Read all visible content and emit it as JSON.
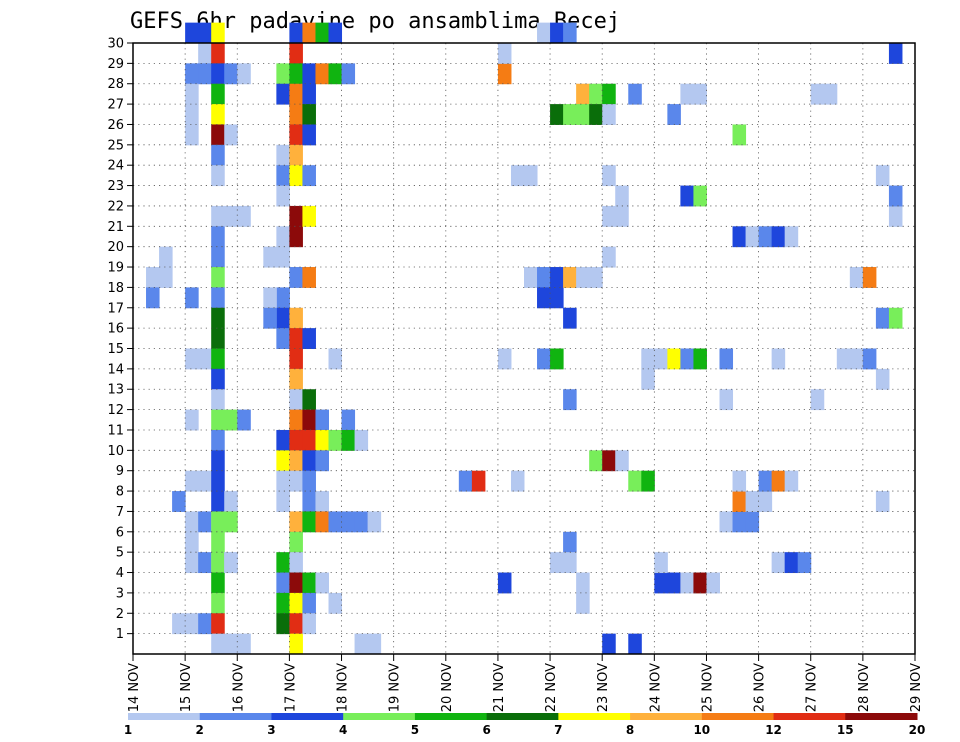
{
  "chart_data": {
    "type": "heatmap",
    "title": "GEFS 6hr padavine po ansamblima Becej",
    "x_labels": [
      "14 NOV",
      "15 NOV",
      "16 NOV",
      "17 NOV",
      "18 NOV",
      "19 NOV",
      "20 NOV",
      "21 NOV",
      "22 NOV",
      "23 NOV",
      "24 NOV",
      "25 NOV",
      "26 NOV",
      "27 NOV",
      "28 NOV",
      "29 NOV"
    ],
    "x_unit_steps": "6h",
    "y_ticks": [
      1,
      2,
      3,
      4,
      5,
      6,
      7,
      8,
      9,
      10,
      11,
      12,
      13,
      14,
      15,
      16,
      17,
      18,
      19,
      20,
      21,
      22,
      23,
      24,
      25,
      26,
      27,
      28,
      29,
      30
    ],
    "ylim": [
      0,
      30
    ],
    "grid": true,
    "colorbar": {
      "labels": [
        "1",
        "2",
        "3",
        "4",
        "5",
        "6",
        "7",
        "8",
        "10",
        "12",
        "15",
        "20"
      ],
      "colors": [
        "#b4c8f0",
        "#5a87eb",
        "#1e46dc",
        "#78ee5a",
        "#10b410",
        "#0a6e0a",
        "#ffff00",
        "#ffb13c",
        "#f57c14",
        "#e12d14",
        "#8c0a0a"
      ]
    },
    "cells": [
      [
        4,
        30,
        3
      ],
      [
        5,
        30,
        3
      ],
      [
        5,
        29,
        1
      ],
      [
        4,
        28,
        2
      ],
      [
        5,
        28,
        2
      ],
      [
        4,
        27,
        1
      ],
      [
        4,
        26,
        1
      ],
      [
        4,
        25,
        1
      ],
      [
        4,
        17,
        2
      ],
      [
        4,
        14,
        1
      ],
      [
        5,
        14,
        1
      ],
      [
        6,
        13,
        1
      ],
      [
        4,
        11,
        1
      ],
      [
        4,
        8,
        1
      ],
      [
        5,
        8,
        1
      ],
      [
        3,
        7,
        2
      ],
      [
        4,
        6,
        1
      ],
      [
        5,
        6,
        2
      ],
      [
        6,
        6,
        1
      ],
      [
        4,
        5,
        1
      ],
      [
        4,
        4,
        1
      ],
      [
        5,
        4,
        2
      ],
      [
        6,
        4,
        1
      ],
      [
        3,
        1,
        1
      ],
      [
        4,
        1,
        1
      ],
      [
        5,
        1,
        2
      ],
      [
        7,
        0,
        1
      ],
      [
        8,
        0,
        1
      ],
      [
        1,
        18,
        1
      ],
      [
        1,
        17,
        2
      ],
      [
        2,
        19,
        1
      ],
      [
        2,
        18,
        1
      ],
      [
        6,
        30,
        7
      ],
      [
        6,
        29,
        10
      ],
      [
        6,
        28,
        3
      ],
      [
        6,
        27,
        5
      ],
      [
        6,
        26,
        7
      ],
      [
        6,
        25,
        11
      ],
      [
        6,
        24,
        2
      ],
      [
        6,
        23,
        1
      ],
      [
        6,
        21,
        1
      ],
      [
        6,
        20,
        2
      ],
      [
        6,
        19,
        2
      ],
      [
        6,
        18,
        4
      ],
      [
        6,
        17,
        2
      ],
      [
        6,
        16,
        6
      ],
      [
        6,
        15,
        6
      ],
      [
        6,
        14,
        5
      ],
      [
        6,
        13,
        3
      ],
      [
        6,
        12,
        1
      ],
      [
        6,
        11,
        4
      ],
      [
        6,
        10,
        2
      ],
      [
        6,
        9,
        3
      ],
      [
        6,
        8,
        3
      ],
      [
        6,
        7,
        3
      ],
      [
        6,
        6,
        4
      ],
      [
        6,
        5,
        4
      ],
      [
        6,
        4,
        4
      ],
      [
        6,
        3,
        5
      ],
      [
        6,
        2,
        4
      ],
      [
        6,
        1,
        10
      ],
      [
        6,
        0,
        1
      ],
      [
        7,
        28,
        2
      ],
      [
        8,
        28,
        1
      ],
      [
        7,
        25,
        1
      ],
      [
        7,
        21,
        1
      ],
      [
        8,
        21,
        1
      ],
      [
        7,
        11,
        4
      ],
      [
        8,
        11,
        2
      ],
      [
        7,
        7,
        1
      ],
      [
        7,
        6,
        4
      ],
      [
        7,
        4,
        1
      ],
      [
        7,
        4,
        1
      ],
      [
        11,
        28,
        4
      ],
      [
        11,
        27,
        3
      ],
      [
        11,
        24,
        1
      ],
      [
        11,
        23,
        2
      ],
      [
        11,
        22,
        1
      ],
      [
        11,
        20,
        1
      ],
      [
        11,
        19,
        1
      ],
      [
        11,
        17,
        2
      ],
      [
        11,
        16,
        3
      ],
      [
        11,
        15,
        2
      ],
      [
        11,
        10,
        3
      ],
      [
        11,
        9,
        7
      ],
      [
        11,
        8,
        1
      ],
      [
        11,
        7,
        1
      ],
      [
        11,
        4,
        5
      ],
      [
        11,
        3,
        2
      ],
      [
        11,
        2,
        5
      ],
      [
        11,
        1,
        6
      ],
      [
        10,
        19,
        1
      ],
      [
        10,
        17,
        1
      ],
      [
        10,
        16,
        2
      ],
      [
        12,
        30,
        3
      ],
      [
        12,
        29,
        10
      ],
      [
        12,
        28,
        5
      ],
      [
        12,
        27,
        9
      ],
      [
        12,
        26,
        9
      ],
      [
        12,
        25,
        10
      ],
      [
        12,
        24,
        8
      ],
      [
        12,
        23,
        7
      ],
      [
        12,
        21,
        11
      ],
      [
        12,
        20,
        11
      ],
      [
        12,
        18,
        2
      ],
      [
        12,
        16,
        8
      ],
      [
        12,
        15,
        10
      ],
      [
        12,
        14,
        10
      ],
      [
        12,
        13,
        8
      ],
      [
        12,
        12,
        1
      ],
      [
        12,
        11,
        9
      ],
      [
        12,
        10,
        10
      ],
      [
        12,
        9,
        8
      ],
      [
        12,
        8,
        1
      ],
      [
        12,
        6,
        8
      ],
      [
        12,
        5,
        4
      ],
      [
        12,
        4,
        1
      ],
      [
        12,
        3,
        11
      ],
      [
        12,
        2,
        7
      ],
      [
        12,
        1,
        10
      ],
      [
        12,
        0,
        7
      ],
      [
        13,
        30,
        9
      ],
      [
        13,
        28,
        3
      ],
      [
        13,
        27,
        3
      ],
      [
        13,
        26,
        6
      ],
      [
        13,
        25,
        3
      ],
      [
        13,
        23,
        2
      ],
      [
        13,
        21,
        7
      ],
      [
        13,
        18,
        9
      ],
      [
        13,
        15,
        3
      ],
      [
        13,
        12,
        6
      ],
      [
        13,
        11,
        11
      ],
      [
        13,
        10,
        10
      ],
      [
        13,
        9,
        3
      ],
      [
        13,
        8,
        2
      ],
      [
        13,
        7,
        2
      ],
      [
        13,
        6,
        5
      ],
      [
        13,
        3,
        5
      ],
      [
        13,
        2,
        2
      ],
      [
        13,
        1,
        1
      ],
      [
        14,
        30,
        5
      ],
      [
        14,
        28,
        9
      ],
      [
        14,
        11,
        2
      ],
      [
        14,
        10,
        7
      ],
      [
        14,
        9,
        2
      ],
      [
        14,
        7,
        1
      ],
      [
        14,
        6,
        9
      ],
      [
        14,
        3,
        1
      ],
      [
        15,
        30,
        3
      ],
      [
        15,
        28,
        5
      ],
      [
        15,
        14,
        1
      ],
      [
        15,
        10,
        4
      ],
      [
        15,
        6,
        2
      ],
      [
        15,
        2,
        1
      ],
      [
        16,
        28,
        2
      ],
      [
        16,
        11,
        2
      ],
      [
        16,
        10,
        5
      ],
      [
        16,
        6,
        2
      ],
      [
        17,
        10,
        1
      ],
      [
        17,
        6,
        2
      ],
      [
        17,
        0,
        1
      ],
      [
        18,
        6,
        1
      ],
      [
        18,
        0,
        1
      ],
      [
        25,
        8,
        2
      ],
      [
        26,
        8,
        10
      ],
      [
        28,
        28,
        9
      ],
      [
        28,
        29,
        1
      ],
      [
        28,
        14,
        1
      ],
      [
        28,
        3,
        3
      ],
      [
        29,
        8,
        1
      ],
      [
        29,
        23,
        1
      ],
      [
        30,
        23,
        1
      ],
      [
        30,
        18,
        1
      ],
      [
        31,
        30,
        1
      ],
      [
        31,
        18,
        2
      ],
      [
        31,
        17,
        3
      ],
      [
        31,
        14,
        2
      ],
      [
        32,
        30,
        3
      ],
      [
        32,
        26,
        6
      ],
      [
        32,
        18,
        3
      ],
      [
        32,
        17,
        3
      ],
      [
        32,
        14,
        5
      ],
      [
        32,
        4,
        1
      ],
      [
        33,
        26,
        4
      ],
      [
        33,
        18,
        8
      ],
      [
        33,
        16,
        3
      ],
      [
        33,
        12,
        2
      ],
      [
        33,
        5,
        2
      ],
      [
        33,
        4,
        1
      ],
      [
        33,
        30,
        2
      ],
      [
        34,
        27,
        8
      ],
      [
        34,
        26,
        4
      ],
      [
        34,
        18,
        1
      ],
      [
        34,
        2,
        1
      ],
      [
        34,
        3,
        1
      ],
      [
        35,
        27,
        4
      ],
      [
        35,
        26,
        6
      ],
      [
        35,
        18,
        1
      ],
      [
        35,
        9,
        4
      ],
      [
        36,
        27,
        5
      ],
      [
        36,
        26,
        1
      ],
      [
        36,
        21,
        1
      ],
      [
        36,
        23,
        1
      ],
      [
        36,
        19,
        1
      ],
      [
        36,
        9,
        11
      ],
      [
        36,
        0,
        3
      ],
      [
        37,
        21,
        1
      ],
      [
        37,
        9,
        1
      ],
      [
        37,
        22,
        1
      ],
      [
        38,
        27,
        2
      ],
      [
        38,
        8,
        4
      ],
      [
        38,
        0,
        3
      ],
      [
        39,
        8,
        5
      ],
      [
        39,
        13,
        1
      ],
      [
        39,
        14,
        1
      ],
      [
        40,
        14,
        1
      ],
      [
        40,
        3,
        3
      ],
      [
        40,
        4,
        1
      ],
      [
        41,
        14,
        7
      ],
      [
        41,
        3,
        3
      ],
      [
        41,
        26,
        2
      ],
      [
        42,
        14,
        2
      ],
      [
        42,
        3,
        1
      ],
      [
        42,
        27,
        1
      ],
      [
        42,
        22,
        3
      ],
      [
        43,
        14,
        5
      ],
      [
        43,
        3,
        11
      ],
      [
        43,
        27,
        1
      ],
      [
        43,
        22,
        4
      ],
      [
        44,
        3,
        1
      ],
      [
        45,
        14,
        2
      ],
      [
        45,
        6,
        1
      ],
      [
        45,
        12,
        1
      ],
      [
        46,
        6,
        2
      ],
      [
        46,
        7,
        9
      ],
      [
        46,
        20,
        3
      ],
      [
        46,
        25,
        4
      ],
      [
        46,
        8,
        1
      ],
      [
        47,
        6,
        2
      ],
      [
        47,
        7,
        1
      ],
      [
        47,
        20,
        1
      ],
      [
        48,
        20,
        2
      ],
      [
        48,
        7,
        1
      ],
      [
        48,
        8,
        2
      ],
      [
        49,
        20,
        3
      ],
      [
        49,
        8,
        9
      ],
      [
        49,
        4,
        1
      ],
      [
        49,
        14,
        1
      ],
      [
        50,
        20,
        1
      ],
      [
        50,
        8,
        1
      ],
      [
        50,
        4,
        3
      ],
      [
        51,
        4,
        2
      ],
      [
        52,
        27,
        1
      ],
      [
        53,
        27,
        1
      ],
      [
        52,
        12,
        1
      ],
      [
        54,
        14,
        1
      ],
      [
        55,
        14,
        1
      ],
      [
        55,
        18,
        1
      ],
      [
        56,
        14,
        2
      ],
      [
        56,
        18,
        9
      ],
      [
        57,
        13,
        1
      ],
      [
        57,
        16,
        2
      ],
      [
        57,
        23,
        1
      ],
      [
        57,
        7,
        1
      ],
      [
        58,
        16,
        4
      ],
      [
        58,
        21,
        1
      ],
      [
        58,
        22,
        2
      ],
      [
        58,
        29,
        3
      ]
    ]
  }
}
